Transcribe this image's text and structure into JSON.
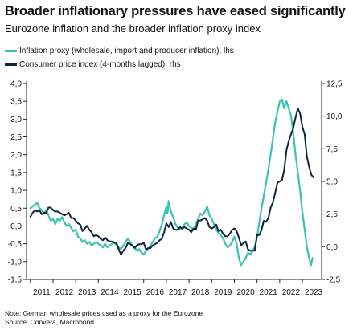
{
  "title": "Broader inflationary pressures have eased significantly",
  "subtitle": "Eurozone inflation and the broader inflation proxy index",
  "notes": [
    "Note: German wholesale prices used as a proxy for the Eurozone",
    "Source: Convera, Macrobond"
  ],
  "chart_data": {
    "type": "line",
    "x_axis": {
      "range": [
        2010.83,
        2023.85
      ],
      "tick_labels": [
        "2011",
        "2012",
        "2013",
        "2014",
        "2015",
        "2016",
        "2017",
        "2018",
        "2019",
        "2020",
        "2021",
        "2022",
        "2023"
      ]
    },
    "y_left": {
      "range": [
        -1.5,
        4.0
      ],
      "tick_values": [
        -1.5,
        -1.0,
        -0.5,
        0.0,
        0.5,
        1.0,
        1.5,
        2.0,
        2.5,
        3.0,
        3.5,
        4.0
      ],
      "tick_labels": [
        "-1,5",
        "-1,0",
        "-0,5",
        "0,0",
        "0,5",
        "1,0",
        "1,5",
        "2,0",
        "2,5",
        "3,0",
        "3,5",
        "4,0"
      ]
    },
    "y_right": {
      "range": [
        -2.5,
        12.5
      ],
      "tick_values": [
        -2.5,
        0.0,
        2.5,
        5.0,
        7.5,
        10.0,
        12.5
      ],
      "tick_labels": [
        "-2,5",
        "0,0",
        "2,5",
        "5,0",
        "7,5",
        "10,0",
        "12,5"
      ]
    },
    "grid": false,
    "legend_position": "top-left",
    "series": [
      {
        "name": "Inflation proxy (wholesale, import and producer inflation), lhs",
        "axis": "left",
        "color": "#3cc3b0",
        "points": [
          [
            2011.0,
            0.5
          ],
          [
            2011.1,
            0.55
          ],
          [
            2011.2,
            0.6
          ],
          [
            2011.3,
            0.65
          ],
          [
            2011.4,
            0.5
          ],
          [
            2011.5,
            0.45
          ],
          [
            2011.6,
            0.35
          ],
          [
            2011.7,
            0.45
          ],
          [
            2011.8,
            0.3
          ],
          [
            2011.9,
            0.15
          ],
          [
            2012.0,
            0.2
          ],
          [
            2012.1,
            0.05
          ],
          [
            2012.2,
            0.2
          ],
          [
            2012.3,
            0.15
          ],
          [
            2012.4,
            0.25
          ],
          [
            2012.5,
            0.1
          ],
          [
            2012.6,
            0.0
          ],
          [
            2012.7,
            0.05
          ],
          [
            2012.8,
            -0.05
          ],
          [
            2012.9,
            -0.15
          ],
          [
            2013.0,
            -0.1
          ],
          [
            2013.1,
            -0.3
          ],
          [
            2013.2,
            -0.35
          ],
          [
            2013.3,
            -0.45
          ],
          [
            2013.4,
            -0.4
          ],
          [
            2013.5,
            -0.5
          ],
          [
            2013.6,
            -0.45
          ],
          [
            2013.7,
            -0.55
          ],
          [
            2013.8,
            -0.5
          ],
          [
            2013.9,
            -0.45
          ],
          [
            2014.0,
            -0.5
          ],
          [
            2014.1,
            -0.55
          ],
          [
            2014.2,
            -0.6
          ],
          [
            2014.3,
            -0.5
          ],
          [
            2014.4,
            -0.6
          ],
          [
            2014.5,
            -0.55
          ],
          [
            2014.6,
            -0.5
          ],
          [
            2014.7,
            -0.45
          ],
          [
            2014.8,
            -0.55
          ],
          [
            2014.9,
            -0.6
          ],
          [
            2015.0,
            -0.65
          ],
          [
            2015.1,
            -0.55
          ],
          [
            2015.2,
            -0.45
          ],
          [
            2015.3,
            -0.35
          ],
          [
            2015.4,
            -0.45
          ],
          [
            2015.5,
            -0.55
          ],
          [
            2015.6,
            -0.6
          ],
          [
            2015.7,
            -0.7
          ],
          [
            2015.8,
            -0.65
          ],
          [
            2015.9,
            -0.75
          ],
          [
            2016.0,
            -0.8
          ],
          [
            2016.1,
            -0.7
          ],
          [
            2016.2,
            -0.65
          ],
          [
            2016.3,
            -0.55
          ],
          [
            2016.4,
            -0.45
          ],
          [
            2016.5,
            -0.35
          ],
          [
            2016.6,
            -0.3
          ],
          [
            2016.7,
            -0.15
          ],
          [
            2016.8,
            0.05
          ],
          [
            2016.9,
            0.3
          ],
          [
            2017.0,
            0.55
          ],
          [
            2017.05,
            0.35
          ],
          [
            2017.1,
            0.7
          ],
          [
            2017.2,
            0.4
          ],
          [
            2017.3,
            0.25
          ],
          [
            2017.4,
            0.05
          ],
          [
            2017.5,
            -0.05
          ],
          [
            2017.6,
            -0.1
          ],
          [
            2017.7,
            -0.05
          ],
          [
            2017.8,
            0.05
          ],
          [
            2017.9,
            0.1
          ],
          [
            2018.0,
            0.0
          ],
          [
            2018.1,
            -0.05
          ],
          [
            2018.2,
            -0.1
          ],
          [
            2018.3,
            0.05
          ],
          [
            2018.4,
            0.2
          ],
          [
            2018.5,
            0.35
          ],
          [
            2018.6,
            0.3
          ],
          [
            2018.7,
            0.4
          ],
          [
            2018.8,
            0.55
          ],
          [
            2018.9,
            0.3
          ],
          [
            2019.0,
            0.2
          ],
          [
            2019.1,
            0.05
          ],
          [
            2019.2,
            -0.1
          ],
          [
            2019.3,
            -0.2
          ],
          [
            2019.4,
            -0.25
          ],
          [
            2019.5,
            -0.35
          ],
          [
            2019.6,
            -0.5
          ],
          [
            2019.7,
            -0.6
          ],
          [
            2019.8,
            -0.55
          ],
          [
            2019.9,
            -0.45
          ],
          [
            2020.0,
            -0.3
          ],
          [
            2020.1,
            -0.5
          ],
          [
            2020.2,
            -0.9
          ],
          [
            2020.3,
            -1.1
          ],
          [
            2020.4,
            -1.0
          ],
          [
            2020.5,
            -0.9
          ],
          [
            2020.6,
            -0.75
          ],
          [
            2020.7,
            -0.8
          ],
          [
            2020.8,
            -0.7
          ],
          [
            2020.9,
            -0.6
          ],
          [
            2021.0,
            -0.3
          ],
          [
            2021.1,
            0.1
          ],
          [
            2021.2,
            0.5
          ],
          [
            2021.3,
            0.85
          ],
          [
            2021.4,
            1.2
          ],
          [
            2021.5,
            1.6
          ],
          [
            2021.6,
            2.0
          ],
          [
            2021.7,
            2.45
          ],
          [
            2021.8,
            2.9
          ],
          [
            2021.9,
            3.2
          ],
          [
            2022.0,
            3.5
          ],
          [
            2022.1,
            3.55
          ],
          [
            2022.2,
            3.3
          ],
          [
            2022.3,
            3.5
          ],
          [
            2022.4,
            3.3
          ],
          [
            2022.5,
            3.1
          ],
          [
            2022.6,
            2.6
          ],
          [
            2022.7,
            2.0
          ],
          [
            2022.8,
            1.5
          ],
          [
            2022.9,
            1.0
          ],
          [
            2023.0,
            0.4
          ],
          [
            2023.1,
            -0.1
          ],
          [
            2023.2,
            -0.6
          ],
          [
            2023.3,
            -0.9
          ],
          [
            2023.38,
            -1.1
          ],
          [
            2023.45,
            -0.9
          ]
        ]
      },
      {
        "name": "Consumer price index (4-months lagged), rhs",
        "axis": "right",
        "color": "#13223f",
        "points": [
          [
            2011.0,
            2.3
          ],
          [
            2011.1,
            2.6
          ],
          [
            2011.2,
            2.8
          ],
          [
            2011.3,
            2.7
          ],
          [
            2011.4,
            2.8
          ],
          [
            2011.5,
            2.5
          ],
          [
            2011.6,
            2.6
          ],
          [
            2011.7,
            2.6
          ],
          [
            2011.8,
            3.0
          ],
          [
            2011.9,
            3.0
          ],
          [
            2012.0,
            2.8
          ],
          [
            2012.1,
            2.7
          ],
          [
            2012.2,
            2.7
          ],
          [
            2012.3,
            2.6
          ],
          [
            2012.4,
            2.5
          ],
          [
            2012.5,
            2.4
          ],
          [
            2012.6,
            2.5
          ],
          [
            2012.7,
            2.6
          ],
          [
            2012.8,
            2.2
          ],
          [
            2012.9,
            2.2
          ],
          [
            2013.0,
            2.0
          ],
          [
            2013.1,
            1.8
          ],
          [
            2013.2,
            1.7
          ],
          [
            2013.3,
            1.2
          ],
          [
            2013.4,
            1.4
          ],
          [
            2013.5,
            1.6
          ],
          [
            2013.6,
            1.3
          ],
          [
            2013.7,
            1.1
          ],
          [
            2013.8,
            0.8
          ],
          [
            2013.9,
            0.9
          ],
          [
            2014.0,
            0.8
          ],
          [
            2014.1,
            0.6
          ],
          [
            2014.2,
            0.5
          ],
          [
            2014.3,
            0.7
          ],
          [
            2014.4,
            0.5
          ],
          [
            2014.5,
            0.4
          ],
          [
            2014.6,
            0.4
          ],
          [
            2014.7,
            0.3
          ],
          [
            2014.8,
            0.3
          ],
          [
            2014.9,
            -0.2
          ],
          [
            2015.0,
            -0.6
          ],
          [
            2015.1,
            -0.3
          ],
          [
            2015.2,
            -0.1
          ],
          [
            2015.3,
            0.3
          ],
          [
            2015.4,
            0.2
          ],
          [
            2015.5,
            0.1
          ],
          [
            2015.6,
            -0.1
          ],
          [
            2015.7,
            0.1
          ],
          [
            2015.8,
            0.2
          ],
          [
            2015.9,
            0.2
          ],
          [
            2016.0,
            0.3
          ],
          [
            2016.1,
            -0.2
          ],
          [
            2016.2,
            -0.1
          ],
          [
            2016.3,
            -0.1
          ],
          [
            2016.4,
            0.1
          ],
          [
            2016.5,
            0.2
          ],
          [
            2016.6,
            0.3
          ],
          [
            2016.7,
            0.5
          ],
          [
            2016.8,
            0.6
          ],
          [
            2016.9,
            1.1
          ],
          [
            2017.0,
            1.8
          ],
          [
            2017.1,
            1.5
          ],
          [
            2017.2,
            1.9
          ],
          [
            2017.3,
            1.4
          ],
          [
            2017.4,
            1.3
          ],
          [
            2017.5,
            1.3
          ],
          [
            2017.6,
            1.5
          ],
          [
            2017.7,
            1.4
          ],
          [
            2017.8,
            1.5
          ],
          [
            2017.9,
            1.4
          ],
          [
            2018.0,
            1.3
          ],
          [
            2018.1,
            1.1
          ],
          [
            2018.2,
            1.4
          ],
          [
            2018.3,
            1.3
          ],
          [
            2018.4,
            2.0
          ],
          [
            2018.5,
            2.0
          ],
          [
            2018.6,
            2.1
          ],
          [
            2018.7,
            2.2
          ],
          [
            2018.8,
            2.0
          ],
          [
            2018.9,
            1.5
          ],
          [
            2019.0,
            1.4
          ],
          [
            2019.1,
            1.5
          ],
          [
            2019.2,
            1.7
          ],
          [
            2019.3,
            1.2
          ],
          [
            2019.4,
            1.3
          ],
          [
            2019.5,
            1.0
          ],
          [
            2019.6,
            0.8
          ],
          [
            2019.7,
            0.8
          ],
          [
            2019.8,
            1.0
          ],
          [
            2019.9,
            1.3
          ],
          [
            2020.0,
            1.4
          ],
          [
            2020.1,
            1.2
          ],
          [
            2020.2,
            0.7
          ],
          [
            2020.3,
            0.1
          ],
          [
            2020.4,
            0.3
          ],
          [
            2020.5,
            0.4
          ],
          [
            2020.6,
            -0.2
          ],
          [
            2020.7,
            -0.3
          ],
          [
            2020.8,
            -0.3
          ],
          [
            2020.9,
            -0.3
          ],
          [
            2021.0,
            0.9
          ],
          [
            2021.1,
            0.9
          ],
          [
            2021.2,
            1.3
          ],
          [
            2021.3,
            2.0
          ],
          [
            2021.4,
            1.9
          ],
          [
            2021.5,
            2.2
          ],
          [
            2021.6,
            3.0
          ],
          [
            2021.7,
            3.4
          ],
          [
            2021.8,
            4.1
          ],
          [
            2021.9,
            4.9
          ],
          [
            2022.0,
            5.0
          ],
          [
            2022.1,
            5.1
          ],
          [
            2022.2,
            5.9
          ],
          [
            2022.3,
            7.4
          ],
          [
            2022.4,
            8.1
          ],
          [
            2022.5,
            8.6
          ],
          [
            2022.6,
            9.1
          ],
          [
            2022.7,
            9.9
          ],
          [
            2022.8,
            10.6
          ],
          [
            2022.9,
            10.2
          ],
          [
            2023.0,
            9.2
          ],
          [
            2023.1,
            8.6
          ],
          [
            2023.2,
            6.9
          ],
          [
            2023.3,
            6.1
          ],
          [
            2023.4,
            5.5
          ],
          [
            2023.5,
            5.3
          ]
        ]
      }
    ]
  }
}
